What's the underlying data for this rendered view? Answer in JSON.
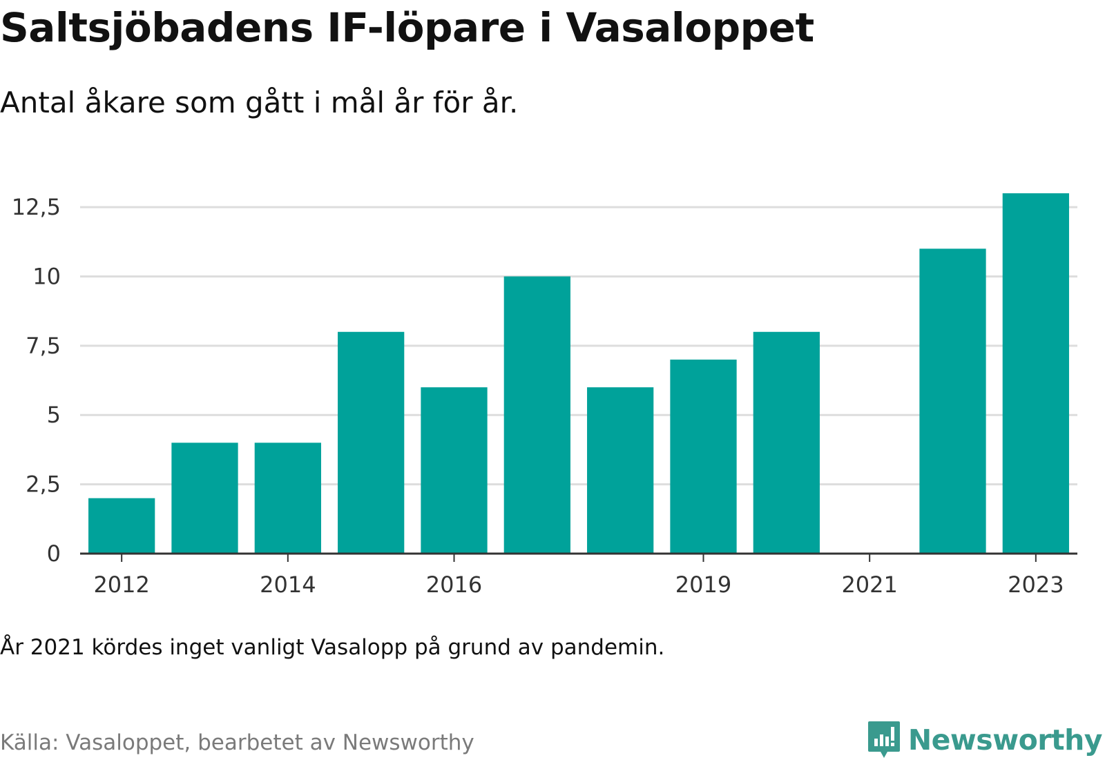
{
  "header": {
    "title": "Saltsjöbadens IF-löpare i Vasaloppet",
    "subtitle": "Antal åkare som gått i mål år för år."
  },
  "footer": {
    "note": "År 2021 kördes inget vanligt Vasalopp på grund av pandemin.",
    "source": "Källa: Vasaloppet, bearbetet av Newsworthy",
    "brand": "Newsworthy",
    "brand_icon": "bar-chart-speech-bubble-icon"
  },
  "colors": {
    "bar": "#00a29a",
    "grid": "#dddddd",
    "axis": "#333333",
    "brand": "#3a9a8e"
  },
  "chart_data": {
    "type": "bar",
    "categories": [
      "2012",
      "2013",
      "2014",
      "2015",
      "2016",
      "2017",
      "2018",
      "2019",
      "2020",
      "2021",
      "2022",
      "2023"
    ],
    "values": [
      2,
      4,
      4,
      8,
      6,
      10,
      6,
      7,
      8,
      0,
      11,
      13
    ],
    "x_tick_labels": [
      "2012",
      "2014",
      "2016",
      "2019",
      "2021",
      "2023"
    ],
    "y_ticks": [
      0,
      2.5,
      5,
      7.5,
      10,
      12.5
    ],
    "y_tick_labels": [
      "0",
      "2,5",
      "5",
      "7,5",
      "10",
      "12,5"
    ],
    "ylim": [
      0,
      13
    ],
    "grid": true,
    "legend": "none"
  }
}
